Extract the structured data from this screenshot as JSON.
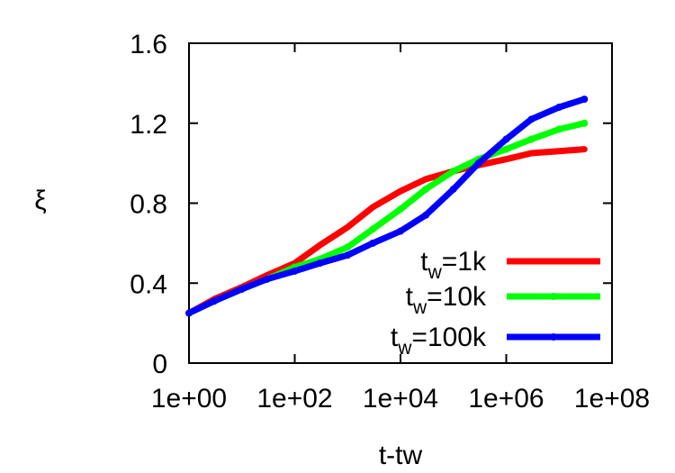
{
  "chart_data": {
    "type": "line",
    "title": "",
    "xlabel": "t-tw",
    "ylabel": "ξ",
    "xscale": "log",
    "xlim": [
      1,
      100000000
    ],
    "ylim": [
      0,
      1.6
    ],
    "x_ticks": [
      {
        "value": 1,
        "label": "1e+00"
      },
      {
        "value": 100,
        "label": "1e+02"
      },
      {
        "value": 10000,
        "label": "1e+04"
      },
      {
        "value": 1000000,
        "label": "1e+06"
      },
      {
        "value": 100000000,
        "label": "1e+08"
      }
    ],
    "y_ticks": [
      {
        "value": 0,
        "label": "0"
      },
      {
        "value": 0.4,
        "label": "0.4"
      },
      {
        "value": 0.8,
        "label": "0.8"
      },
      {
        "value": 1.2,
        "label": "1.2"
      },
      {
        "value": 1.6,
        "label": "1.6"
      }
    ],
    "grid": false,
    "legend_position": "bottom-right",
    "series": [
      {
        "name_main": "t",
        "name_sub": "w",
        "name_rest": "=1k",
        "color": "#ff0000",
        "marker": "none",
        "x": [
          1,
          3,
          10,
          30,
          100,
          300,
          1000,
          3000,
          10000,
          30000,
          100000,
          300000,
          1000000,
          3000000,
          10000000,
          30000000
        ],
        "y": [
          0.25,
          0.32,
          0.38,
          0.44,
          0.5,
          0.59,
          0.68,
          0.78,
          0.86,
          0.92,
          0.96,
          0.99,
          1.02,
          1.05,
          1.06,
          1.07
        ]
      },
      {
        "name_main": "t",
        "name_sub": "w",
        "name_rest": "=10k",
        "color": "#00ff00",
        "marker": "point",
        "x": [
          1,
          3,
          10,
          30,
          100,
          300,
          1000,
          3000,
          10000,
          30000,
          100000,
          300000,
          1000000,
          3000000,
          10000000,
          30000000
        ],
        "y": [
          0.25,
          0.31,
          0.37,
          0.42,
          0.48,
          0.52,
          0.58,
          0.67,
          0.77,
          0.87,
          0.96,
          1.02,
          1.07,
          1.12,
          1.17,
          1.2
        ]
      },
      {
        "name_main": "t",
        "name_sub": "w",
        "name_rest": "=100k",
        "color": "#0000ff",
        "marker": "point",
        "x": [
          1,
          3,
          10,
          30,
          100,
          300,
          1000,
          3000,
          10000,
          30000,
          100000,
          300000,
          1000000,
          3000000,
          10000000,
          30000000
        ],
        "y": [
          0.25,
          0.31,
          0.37,
          0.42,
          0.46,
          0.5,
          0.54,
          0.6,
          0.66,
          0.74,
          0.87,
          1.0,
          1.12,
          1.22,
          1.28,
          1.32
        ]
      }
    ]
  }
}
